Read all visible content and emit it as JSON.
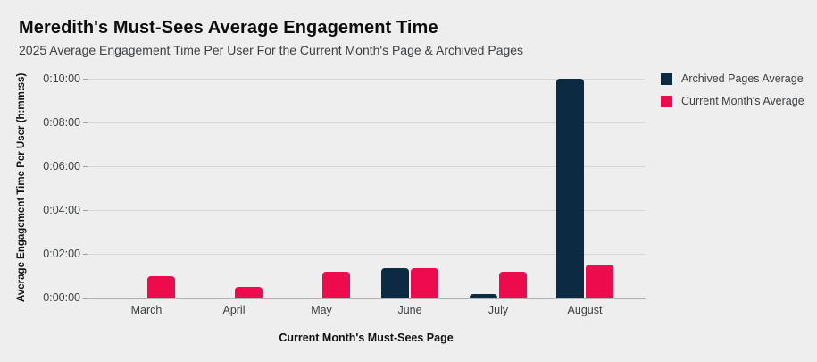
{
  "page": {
    "background_color": "#eeeeee",
    "gridline_color": "#d6d6d6",
    "baseline_color": "#b2b2b2"
  },
  "header": {
    "title": "Meredith's Must-Sees Average Engagement Time",
    "subtitle": "2025 Average Engagement Time Per User For the Current Month's Page & Archived Pages"
  },
  "legend": {
    "position": "top-right",
    "items": [
      {
        "label": "Archived Pages Average",
        "color": "#0b2b43"
      },
      {
        "label": "Current Month's Average",
        "color": "#ec0c4e"
      }
    ]
  },
  "chart_data": {
    "type": "bar",
    "title": "Meredith's Must-Sees Average Engagement Time",
    "subtitle": "2025 Average Engagement Time Per User For the Current Month's Page & Archived Pages",
    "xlabel": "Current Month's Must-Sees Page",
    "ylabel": "Average Engagement Time Per User (h:mm:ss)",
    "categories": [
      "March",
      "April",
      "May",
      "June",
      "July",
      "August"
    ],
    "series": [
      {
        "name": "Archived Pages Average",
        "color": "#0b2b43",
        "values_seconds": [
          0,
          0,
          0,
          80,
          10,
          600
        ],
        "values_hmmss": [
          "0:00:00",
          "0:00:00",
          "0:00:00",
          "0:01:20",
          "0:00:10",
          "0:10:00"
        ]
      },
      {
        "name": "Current Month's Average",
        "color": "#ec0c4e",
        "values_seconds": [
          60,
          30,
          70,
          80,
          70,
          90
        ],
        "values_hmmss": [
          "0:01:00",
          "0:00:30",
          "0:01:10",
          "0:01:20",
          "0:01:10",
          "0:01:30"
        ]
      }
    ],
    "y_ticks_seconds": [
      0,
      120,
      240,
      360,
      480,
      600
    ],
    "y_tick_labels": [
      "0:00:00",
      "0:02:00",
      "0:04:00",
      "0:06:00",
      "0:08:00",
      "0:10:00"
    ],
    "ylim_seconds": [
      0,
      600
    ],
    "grid": true,
    "legend_position": "top-right"
  }
}
